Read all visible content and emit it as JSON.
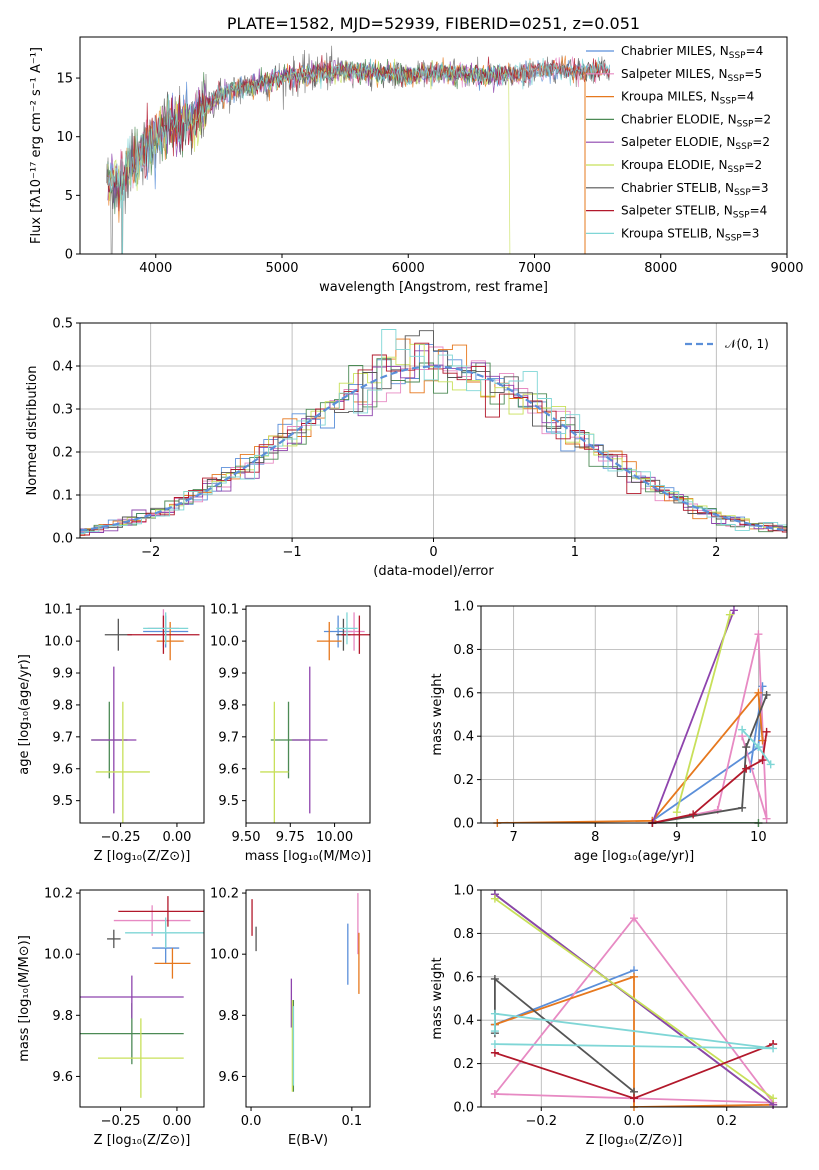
{
  "colors": {
    "Chabrier MILES": "#5b8fd9",
    "Salpeter MILES": "#e78ac3",
    "Kroupa MILES": "#e6781e",
    "Chabrier ELODIE": "#4c8a55",
    "Salpeter ELODIE": "#8e44ad",
    "Kroupa ELODIE": "#c8e05a",
    "Chabrier STELIB": "#555555",
    "Salpeter STELIB": "#b2182b",
    "Kroupa STELIB": "#7fd6d6"
  },
  "chart_data": [
    {
      "id": "spectrum",
      "type": "line",
      "title": "PLATE=1582, MJD=52939, FIBERID=0251, z=0.051",
      "xlabel": "wavelength [Angstrom, rest frame]",
      "ylabel": "Flux [fλ10⁻¹⁷ erg cm⁻² s⁻¹ A⁻¹]",
      "xlim": [
        3400,
        9000
      ],
      "ylim": [
        0,
        18.5
      ],
      "xticks": [
        4000,
        5000,
        6000,
        7000,
        8000,
        9000
      ],
      "yticks": [
        0,
        5,
        10,
        15
      ],
      "legend_position": "right",
      "legend": [
        {
          "label": "Chabrier MILES, N",
          "sub": "SSP",
          "suffix": "=4",
          "key": "Chabrier MILES"
        },
        {
          "label": "Salpeter MILES, N",
          "sub": "SSP",
          "suffix": "=5",
          "key": "Salpeter MILES"
        },
        {
          "label": "Kroupa MILES, N",
          "sub": "SSP",
          "suffix": "=4",
          "key": "Kroupa MILES"
        },
        {
          "label": "Chabrier ELODIE, N",
          "sub": "SSP",
          "suffix": "=2",
          "key": "Chabrier ELODIE"
        },
        {
          "label": "Salpeter ELODIE, N",
          "sub": "SSP",
          "suffix": "=2",
          "key": "Salpeter ELODIE"
        },
        {
          "label": "Kroupa ELODIE, N",
          "sub": "SSP",
          "suffix": "=2",
          "key": "Kroupa ELODIE"
        },
        {
          "label": "Chabrier STELIB, N",
          "sub": "SSP",
          "suffix": "=3",
          "key": "Chabrier STELIB"
        },
        {
          "label": "Salpeter STELIB, N",
          "sub": "SSP",
          "suffix": "=4",
          "key": "Salpeter STELIB"
        },
        {
          "label": "Kroupa STELIB, N",
          "sub": "SSP",
          "suffix": "=3",
          "key": "Kroupa STELIB"
        }
      ],
      "data_continuum": {
        "x": [
          3600,
          3700,
          3800,
          3900,
          4000,
          4100,
          4200,
          4300,
          4400,
          4500,
          4600,
          4700,
          4800,
          5000,
          5200,
          5400,
          5600,
          5800,
          6000,
          6200,
          6400,
          6600,
          6800,
          7000,
          7200,
          7400,
          7600
        ],
        "y": [
          6.5,
          6.0,
          7.5,
          8.5,
          10.0,
          11.2,
          11.0,
          11.5,
          12.5,
          13.5,
          13.8,
          14.2,
          14.5,
          15.0,
          15.3,
          15.6,
          15.5,
          15.5,
          15.2,
          15.6,
          15.4,
          15.2,
          15.3,
          15.5,
          15.8,
          15.5,
          15.8
        ]
      }
    },
    {
      "id": "residuals",
      "type": "step",
      "xlabel": "(data-model)/error",
      "ylabel": "Normed distribution",
      "xlim": [
        -2.5,
        2.5
      ],
      "ylim": [
        0,
        0.5
      ],
      "xticks": [
        -2,
        -1,
        0,
        1,
        2
      ],
      "yticks": [
        0.0,
        0.1,
        0.2,
        0.3,
        0.4,
        0.5
      ],
      "legend_position": "top-right",
      "legend": [
        {
          "label": "𝒩(0, 1)",
          "color": "#5b8fd9",
          "style": "dashed"
        }
      ]
    },
    {
      "id": "age_vs_Z",
      "type": "errorbar",
      "xlabel": "Z [log₁₀(Z/Z⊙)]",
      "ylabel": "age  [log₁₀(age/yr)]",
      "xlim": [
        -0.43,
        0.12
      ],
      "ylim": [
        9.43,
        10.11
      ],
      "xticks": [
        -0.25,
        0.0
      ],
      "yticks": [
        9.5,
        9.6,
        9.7,
        9.8,
        9.9,
        10.0,
        10.1
      ],
      "points": [
        {
          "key": "Chabrier MILES",
          "x": -0.05,
          "y": 10.03,
          "xerr": 0.1,
          "yerr": 0.05
        },
        {
          "key": "Salpeter MILES",
          "x": -0.06,
          "y": 10.04,
          "xerr": 0.07,
          "yerr": 0.06
        },
        {
          "key": "Kroupa MILES",
          "x": -0.03,
          "y": 10.0,
          "xerr": 0.06,
          "yerr": 0.06
        },
        {
          "key": "Chabrier ELODIE",
          "x": -0.3,
          "y": 9.69,
          "xerr": 0.08,
          "yerr": 0.12
        },
        {
          "key": "Salpeter ELODIE",
          "x": -0.28,
          "y": 9.69,
          "xerr": 0.1,
          "yerr": 0.23
        },
        {
          "key": "Kroupa ELODIE",
          "x": -0.24,
          "y": 9.59,
          "xerr": 0.12,
          "yerr": 0.22
        },
        {
          "key": "Chabrier STELIB",
          "x": -0.26,
          "y": 10.02,
          "xerr": 0.06,
          "yerr": 0.05
        },
        {
          "key": "Salpeter STELIB",
          "x": -0.06,
          "y": 10.02,
          "xerr": 0.16,
          "yerr": 0.06
        },
        {
          "key": "Kroupa STELIB",
          "x": -0.05,
          "y": 10.04,
          "xerr": 0.1,
          "yerr": 0.05
        }
      ]
    },
    {
      "id": "age_vs_mass",
      "type": "errorbar",
      "xlabel": "mass [log₁₀(M/M⊙)]",
      "ylabel": "",
      "xlim": [
        9.5,
        10.2
      ],
      "ylim": [
        9.43,
        10.11
      ],
      "xticks": [
        9.5,
        9.75,
        10.0
      ],
      "yticks": [
        9.5,
        9.6,
        9.7,
        9.8,
        9.9,
        10.0,
        10.1
      ],
      "points": [
        {
          "key": "Chabrier MILES",
          "x": 10.02,
          "y": 10.03,
          "xerr": 0.08,
          "yerr": 0.05
        },
        {
          "key": "Salpeter MILES",
          "x": 10.11,
          "y": 10.03,
          "xerr": 0.06,
          "yerr": 0.06
        },
        {
          "key": "Kroupa MILES",
          "x": 9.97,
          "y": 10.0,
          "xerr": 0.07,
          "yerr": 0.06
        },
        {
          "key": "Chabrier ELODIE",
          "x": 9.74,
          "y": 9.69,
          "xerr": 0.1,
          "yerr": 0.12
        },
        {
          "key": "Salpeter ELODIE",
          "x": 9.86,
          "y": 9.69,
          "xerr": 0.1,
          "yerr": 0.23
        },
        {
          "key": "Kroupa ELODIE",
          "x": 9.66,
          "y": 9.59,
          "xerr": 0.08,
          "yerr": 0.22
        },
        {
          "key": "Chabrier STELIB",
          "x": 10.05,
          "y": 10.02,
          "xerr": 0.04,
          "yerr": 0.05
        },
        {
          "key": "Salpeter STELIB",
          "x": 10.14,
          "y": 10.02,
          "xerr": 0.1,
          "yerr": 0.06
        },
        {
          "key": "Kroupa STELIB",
          "x": 10.07,
          "y": 10.04,
          "xerr": 0.06,
          "yerr": 0.05
        }
      ]
    },
    {
      "id": "weight_vs_age",
      "type": "line",
      "xlabel": "age  [log₁₀(age/yr)]",
      "ylabel": "mass weight",
      "xlim": [
        6.6,
        10.35
      ],
      "ylim": [
        0,
        1
      ],
      "xticks": [
        7,
        8,
        9,
        10
      ],
      "yticks": [
        0.0,
        0.2,
        0.4,
        0.6,
        0.8,
        1.0
      ],
      "series": [
        {
          "key": "Chabrier MILES",
          "x": [
            8.7,
            10.0,
            10.05,
            9.9
          ],
          "y": [
            0.01,
            0.35,
            0.63,
            0.25
          ]
        },
        {
          "key": "Salpeter MILES",
          "x": [
            8.7,
            9.5,
            10.0,
            10.1,
            9.8
          ],
          "y": [
            0.0,
            0.06,
            0.87,
            0.02,
            0.4
          ]
        },
        {
          "key": "Kroupa MILES",
          "x": [
            6.8,
            8.7,
            10.0,
            10.05
          ],
          "y": [
            0.0,
            0.01,
            0.6,
            0.38
          ]
        },
        {
          "key": "Chabrier ELODIE",
          "x": [
            8.7,
            10.0
          ],
          "y": [
            0.0,
            0.0
          ]
        },
        {
          "key": "Salpeter ELODIE",
          "x": [
            8.7,
            9.7
          ],
          "y": [
            0.0,
            0.98
          ]
        },
        {
          "key": "Kroupa ELODIE",
          "x": [
            9.0,
            9.65
          ],
          "y": [
            0.05,
            0.96
          ]
        },
        {
          "key": "Chabrier STELIB",
          "x": [
            8.7,
            9.8,
            9.85,
            10.1
          ],
          "y": [
            0.0,
            0.07,
            0.35,
            0.59
          ]
        },
        {
          "key": "Salpeter STELIB",
          "x": [
            8.7,
            9.2,
            9.85,
            10.05,
            10.1
          ],
          "y": [
            0.0,
            0.04,
            0.25,
            0.29,
            0.42
          ]
        },
        {
          "key": "Kroupa STELIB",
          "x": [
            9.8,
            10.0,
            10.15
          ],
          "y": [
            0.43,
            0.35,
            0.27
          ]
        }
      ]
    },
    {
      "id": "mass_vs_Z",
      "type": "errorbar",
      "xlabel": "Z [log₁₀(Z/Z⊙)]",
      "ylabel": "mass [log₁₀(M/M⊙)]",
      "xlim": [
        -0.43,
        0.12
      ],
      "ylim": [
        9.5,
        10.21
      ],
      "xticks": [
        -0.25,
        0.0
      ],
      "yticks": [
        9.6,
        9.8,
        10.0,
        10.2
      ],
      "points": [
        {
          "key": "Chabrier MILES",
          "x": -0.05,
          "y": 10.02,
          "xerr": 0.06,
          "yerr": 0.05
        },
        {
          "key": "Salpeter MILES",
          "x": -0.11,
          "y": 10.11,
          "xerr": 0.17,
          "yerr": 0.05
        },
        {
          "key": "Kroupa MILES",
          "x": -0.02,
          "y": 9.97,
          "xerr": 0.08,
          "yerr": 0.05
        },
        {
          "key": "Chabrier ELODIE",
          "x": -0.2,
          "y": 9.74,
          "xerr": 0.23,
          "yerr": 0.1
        },
        {
          "key": "Salpeter ELODIE",
          "x": -0.2,
          "y": 9.86,
          "xerr": 0.23,
          "yerr": 0.07
        },
        {
          "key": "Kroupa ELODIE",
          "x": -0.16,
          "y": 9.66,
          "xerr": 0.19,
          "yerr": 0.13
        },
        {
          "key": "Chabrier STELIB",
          "x": -0.28,
          "y": 10.05,
          "xerr": 0.03,
          "yerr": 0.03
        },
        {
          "key": "Salpeter STELIB",
          "x": -0.04,
          "y": 10.14,
          "xerr": 0.22,
          "yerr": 0.05
        },
        {
          "key": "Kroupa STELIB",
          "x": -0.05,
          "y": 10.07,
          "xerr": 0.18,
          "yerr": 0.05
        }
      ]
    },
    {
      "id": "mass_vs_EBV",
      "type": "errorbar",
      "xlabel": "E(B-V)",
      "ylabel": "",
      "xlim": [
        -0.005,
        0.118
      ],
      "ylim": [
        9.5,
        10.21
      ],
      "xticks": [
        0.0,
        0.1
      ],
      "yticks": [
        9.6,
        9.8,
        10.0,
        10.2
      ],
      "points": [
        {
          "key": "Chabrier MILES",
          "x": 0.096,
          "y": 10.0,
          "yerr": 0.1
        },
        {
          "key": "Salpeter MILES",
          "x": 0.106,
          "y": 10.1,
          "yerr": 0.1
        },
        {
          "key": "Kroupa MILES",
          "x": 0.107,
          "y": 9.97,
          "yerr": 0.1
        },
        {
          "key": "Chabrier ELODIE",
          "x": 0.042,
          "y": 9.7,
          "yerr": 0.15
        },
        {
          "key": "Salpeter ELODIE",
          "x": 0.04,
          "y": 9.84,
          "yerr": 0.08
        },
        {
          "key": "Kroupa ELODIE",
          "x": 0.041,
          "y": 9.7,
          "yerr": 0.15
        },
        {
          "key": "Chabrier STELIB",
          "x": 0.005,
          "y": 10.05,
          "yerr": 0.04
        },
        {
          "key": "Salpeter STELIB",
          "x": 0.001,
          "y": 10.12,
          "yerr": 0.06
        },
        {
          "key": "Kroupa STELIB",
          "x": 0.042,
          "y": 9.7,
          "yerr": 0.13
        }
      ]
    },
    {
      "id": "weight_vs_Z",
      "type": "line",
      "xlabel": "Z [log₁₀(Z/Z⊙)]",
      "ylabel": "mass weight",
      "xlim": [
        -0.33,
        0.33
      ],
      "ylim": [
        0,
        1
      ],
      "xticks": [
        -0.2,
        0.0,
        0.2
      ],
      "yticks": [
        0.0,
        0.2,
        0.4,
        0.6,
        0.8,
        1.0
      ],
      "series": [
        {
          "key": "Chabrier MILES",
          "x": [
            -0.3,
            0.0,
            -0.3
          ],
          "y": [
            0.38,
            0.63,
            0.38
          ]
        },
        {
          "key": "Salpeter MILES",
          "x": [
            -0.3,
            0.0,
            0.3,
            -0.3
          ],
          "y": [
            0.06,
            0.87,
            0.02,
            0.06
          ]
        },
        {
          "key": "Kroupa MILES",
          "x": [
            -0.3,
            0.0,
            0.0,
            0.3
          ],
          "y": [
            0.38,
            0.6,
            0.0,
            0.01
          ]
        },
        {
          "key": "Chabrier ELODIE",
          "x": [
            -0.3,
            0.3
          ],
          "y": [
            0.98,
            0.01
          ]
        },
        {
          "key": "Salpeter ELODIE",
          "x": [
            -0.3,
            0.3
          ],
          "y": [
            0.98,
            0.01
          ]
        },
        {
          "key": "Kroupa ELODIE",
          "x": [
            -0.3,
            0.3
          ],
          "y": [
            0.96,
            0.04
          ]
        },
        {
          "key": "Chabrier STELIB",
          "x": [
            -0.3,
            -0.3,
            0.0
          ],
          "y": [
            0.34,
            0.59,
            0.07
          ]
        },
        {
          "key": "Salpeter STELIB",
          "x": [
            -0.3,
            0.0,
            0.3,
            0.3
          ],
          "y": [
            0.25,
            0.04,
            0.29,
            0.29
          ]
        },
        {
          "key": "Kroupa STELIB",
          "x": [
            -0.3,
            0.3,
            -0.3,
            -0.3
          ],
          "y": [
            0.29,
            0.27,
            0.43,
            0.35
          ]
        }
      ]
    }
  ]
}
